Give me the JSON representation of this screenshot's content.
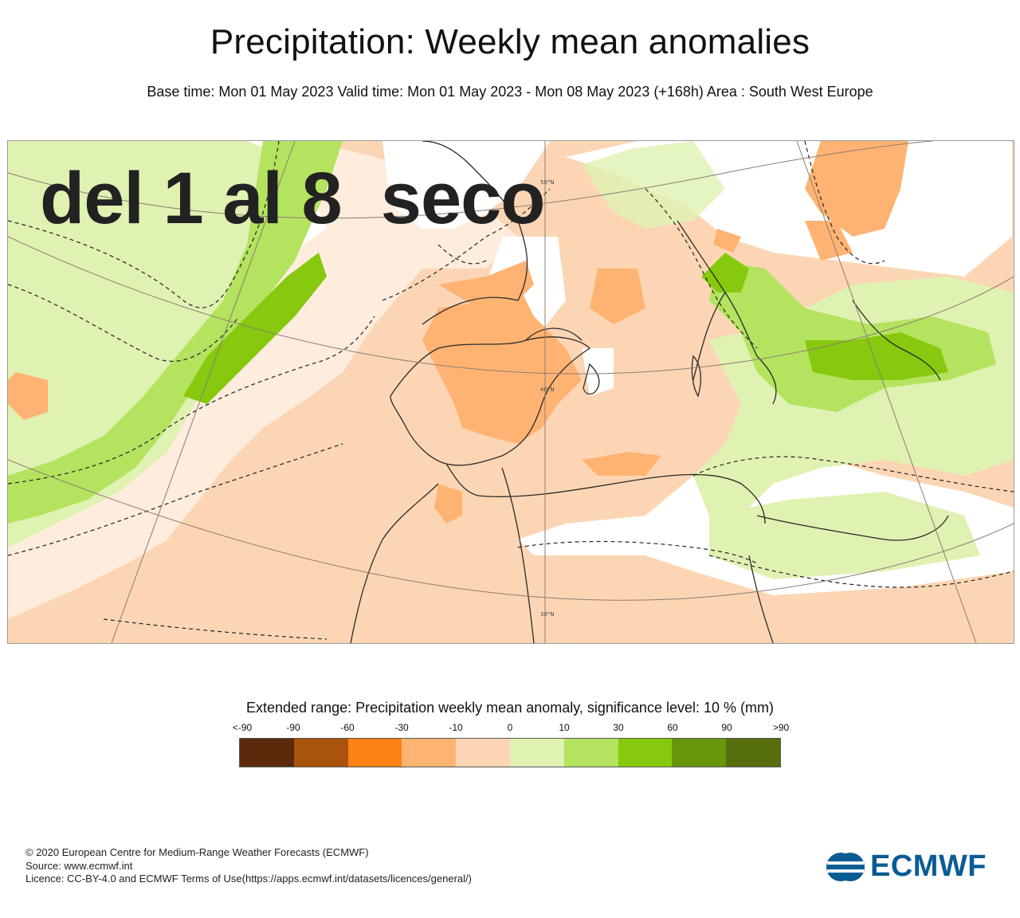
{
  "header": {
    "title": "Precipitation: Weekly mean anomalies",
    "subtitle": "Base time: Mon 01 May 2023 Valid time: Mon 01 May 2023 - Mon 08 May 2023 (+168h) Area : South West Europe"
  },
  "map": {
    "overlay_text": "del 1 al 8  seco",
    "lat_labels": [
      "50°N",
      "40°N",
      "30°N"
    ]
  },
  "legend": {
    "title": "Extended range: Precipitation weekly mean anomaly, significance level: 10 % (mm)",
    "labels": [
      "<-90",
      "-90",
      "-60",
      "-30",
      "-10",
      "0",
      "10",
      "30",
      "60",
      "90",
      ">90"
    ],
    "colors": [
      "#5a2a0a",
      "#a9540c",
      "#ff8212",
      "#ffb373",
      "#fcd6b4",
      "#dff2b2",
      "#b4e35f",
      "#86c90e",
      "#67960a",
      "#566e0d"
    ]
  },
  "footer": {
    "line1": "© 2020 European Centre for Medium-Range Weather Forecasts (ECMWF)",
    "line2": "Source: www.ecmwf.int",
    "line3": "Licence: CC-BY-4.0 and ECMWF Terms of Use(https://apps.ecmwf.int/datasets/licences/general/)"
  },
  "logo": {
    "text": "ECMWF",
    "color": "#0a5c95"
  }
}
